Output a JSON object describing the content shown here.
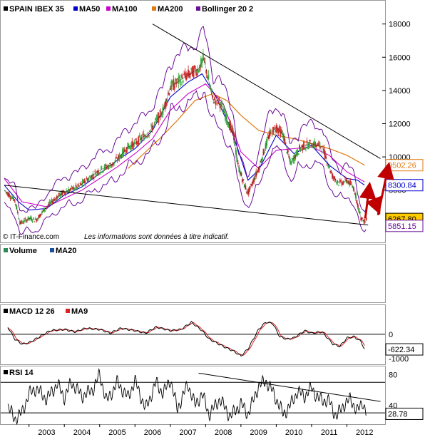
{
  "chart_data": [
    {
      "type": "candlestick",
      "legend": [
        {
          "label": "SPAIN IBEX 35",
          "color": "#000000"
        },
        {
          "label": "MA50",
          "color": "#0000cc"
        },
        {
          "label": "MA100",
          "color": "#cc00cc"
        },
        {
          "label": "MA200",
          "color": "#e07a10"
        },
        {
          "label": "Bollinger 20 2",
          "color": "#6a0d99"
        }
      ],
      "y_ticks": [
        "18000",
        "16000",
        "14000",
        "12000",
        "10000",
        "8000"
      ],
      "ylim": [
        5500,
        18500
      ],
      "x_ticks": [
        "2003",
        "2004",
        "2005",
        "2006",
        "2007",
        "2008",
        "2009",
        "2010",
        "2011",
        "2012"
      ],
      "xlim": [
        2002.3,
        2013.0
      ],
      "price_path": [
        [
          2002.3,
          8000
        ],
        [
          2002.6,
          7400
        ],
        [
          2002.75,
          6000
        ],
        [
          2003.0,
          6300
        ],
        [
          2003.2,
          6200
        ],
        [
          2003.5,
          7000
        ],
        [
          2003.8,
          7600
        ],
        [
          2004.0,
          7900
        ],
        [
          2004.4,
          8200
        ],
        [
          2004.8,
          8900
        ],
        [
          2005.0,
          9200
        ],
        [
          2005.4,
          9600
        ],
        [
          2005.8,
          10600
        ],
        [
          2006.0,
          10800
        ],
        [
          2006.4,
          11500
        ],
        [
          2006.8,
          12800
        ],
        [
          2007.0,
          14200
        ],
        [
          2007.4,
          14800
        ],
        [
          2007.8,
          15300
        ],
        [
          2007.95,
          15900
        ],
        [
          2008.2,
          13500
        ],
        [
          2008.4,
          13300
        ],
        [
          2008.8,
          11300
        ],
        [
          2008.9,
          9600
        ],
        [
          2009.1,
          8300
        ],
        [
          2009.2,
          7800
        ],
        [
          2009.5,
          9300
        ],
        [
          2009.8,
          11300
        ],
        [
          2010.0,
          11800
        ],
        [
          2010.2,
          11300
        ],
        [
          2010.4,
          9600
        ],
        [
          2010.7,
          10600
        ],
        [
          2011.0,
          10800
        ],
        [
          2011.3,
          10600
        ],
        [
          2011.6,
          8800
        ],
        [
          2011.8,
          8400
        ],
        [
          2012.0,
          8600
        ],
        [
          2012.2,
          8100
        ],
        [
          2012.4,
          6300
        ],
        [
          2012.5,
          6100
        ],
        [
          2012.55,
          6267.8
        ]
      ],
      "ma50": [
        [
          2002.3,
          8300
        ],
        [
          2002.7,
          7300
        ],
        [
          2003.0,
          6800
        ],
        [
          2003.5,
          6900
        ],
        [
          2004.0,
          7700
        ],
        [
          2004.5,
          8200
        ],
        [
          2005.0,
          9000
        ],
        [
          2005.5,
          9800
        ],
        [
          2006.0,
          10500
        ],
        [
          2006.5,
          11600
        ],
        [
          2007.0,
          13600
        ],
        [
          2007.5,
          14500
        ],
        [
          2007.9,
          15000
        ],
        [
          2008.3,
          13600
        ],
        [
          2008.8,
          11200
        ],
        [
          2009.2,
          8600
        ],
        [
          2009.5,
          9200
        ],
        [
          2010.0,
          11300
        ],
        [
          2010.5,
          10200
        ],
        [
          2011.0,
          10700
        ],
        [
          2011.5,
          9500
        ],
        [
          2012.0,
          8700
        ],
        [
          2012.3,
          8600
        ],
        [
          2012.5,
          8300.84
        ]
      ],
      "ma100": [
        [
          2002.3,
          8700
        ],
        [
          2002.8,
          7300
        ],
        [
          2003.5,
          7000
        ],
        [
          2004.0,
          7500
        ],
        [
          2004.5,
          8000
        ],
        [
          2005.0,
          8700
        ],
        [
          2005.5,
          9400
        ],
        [
          2006.0,
          10200
        ],
        [
          2006.5,
          11100
        ],
        [
          2007.0,
          12800
        ],
        [
          2007.5,
          13800
        ],
        [
          2008.0,
          14400
        ],
        [
          2008.5,
          13200
        ],
        [
          2009.0,
          10300
        ],
        [
          2009.5,
          9300
        ],
        [
          2010.0,
          10400
        ],
        [
          2010.5,
          10500
        ],
        [
          2011.0,
          10600
        ],
        [
          2011.5,
          10100
        ],
        [
          2012.0,
          9100
        ],
        [
          2012.5,
          8500
        ]
      ],
      "ma200": [
        [
          2005.8,
          9300
        ],
        [
          2006.2,
          10100
        ],
        [
          2006.7,
          11100
        ],
        [
          2007.2,
          12200
        ],
        [
          2007.7,
          13400
        ],
        [
          2008.2,
          13800
        ],
        [
          2008.6,
          13400
        ],
        [
          2009.0,
          12500
        ],
        [
          2009.5,
          11600
        ],
        [
          2010.0,
          11300
        ],
        [
          2010.5,
          11100
        ],
        [
          2011.0,
          10800
        ],
        [
          2011.5,
          10500
        ],
        [
          2012.0,
          10100
        ],
        [
          2012.5,
          9502.26
        ]
      ],
      "trendlines": [
        [
          [
            2002.3,
            8300
          ],
          [
            2012.6,
            5900
          ]
        ],
        [
          [
            2006.5,
            18000
          ],
          [
            2012.95,
            9900
          ]
        ]
      ],
      "value_boxes": [
        {
          "value": "9502.26",
          "color": "#e07a10",
          "fill": "#ffffff"
        },
        {
          "value": "8300.84",
          "color": "#0000cc",
          "fill": "#ffffff"
        },
        {
          "value": "6267.80",
          "color": "#000000",
          "fill": "#ffcc00"
        },
        {
          "value": "5851.15",
          "color": "#6a0d99",
          "fill": "#ffffff"
        }
      ]
    },
    {
      "type": "bar",
      "legend": [
        {
          "label": "Volume",
          "color": "#2e8b57"
        },
        {
          "label": "MA20",
          "color": "#1a4f9c"
        }
      ]
    },
    {
      "type": "line",
      "legend": [
        {
          "label": "MACD 12 26",
          "color": "#000000"
        },
        {
          "label": "MA9",
          "color": "#dd2222"
        }
      ],
      "y_ticks": [
        "0",
        "-1000"
      ],
      "ylim": [
        -1150,
        850
      ],
      "macd": [
        [
          2002.4,
          300
        ],
        [
          2002.6,
          -200
        ],
        [
          2002.8,
          -400
        ],
        [
          2003.0,
          -350
        ],
        [
          2003.3,
          -100
        ],
        [
          2003.6,
          150
        ],
        [
          2004.0,
          200
        ],
        [
          2004.3,
          100
        ],
        [
          2004.6,
          250
        ],
        [
          2005.0,
          200
        ],
        [
          2005.3,
          50
        ],
        [
          2005.6,
          250
        ],
        [
          2006.0,
          150
        ],
        [
          2006.3,
          50
        ],
        [
          2006.6,
          300
        ],
        [
          2007.0,
          150
        ],
        [
          2007.3,
          200
        ],
        [
          2007.6,
          500
        ],
        [
          2007.9,
          150
        ],
        [
          2008.1,
          -200
        ],
        [
          2008.5,
          -500
        ],
        [
          2008.8,
          -700
        ],
        [
          2009.0,
          -900
        ],
        [
          2009.2,
          -600
        ],
        [
          2009.5,
          200
        ],
        [
          2009.7,
          500
        ],
        [
          2009.9,
          450
        ],
        [
          2010.1,
          -100
        ],
        [
          2010.3,
          -200
        ],
        [
          2010.5,
          -150
        ],
        [
          2010.8,
          150
        ],
        [
          2011.0,
          50
        ],
        [
          2011.3,
          100
        ],
        [
          2011.6,
          -400
        ],
        [
          2011.8,
          -500
        ],
        [
          2012.0,
          -150
        ],
        [
          2012.2,
          -100
        ],
        [
          2012.4,
          -300
        ],
        [
          2012.5,
          -622.34
        ]
      ],
      "value_boxes": [
        {
          "value": "-622.34",
          "color": "#000000",
          "fill": "#ffffff"
        }
      ]
    },
    {
      "type": "line",
      "legend": [
        {
          "label": "RSI 14",
          "color": "#000000"
        }
      ],
      "y_ticks": [
        "80",
        "40"
      ],
      "reference_lines": [
        70,
        30
      ],
      "ylim": [
        18,
        88
      ],
      "rsi": [
        [
          2002.4,
          38
        ],
        [
          2002.6,
          22
        ],
        [
          2002.8,
          30
        ],
        [
          2003.0,
          55
        ],
        [
          2003.2,
          62
        ],
        [
          2003.5,
          48
        ],
        [
          2003.8,
          68
        ],
        [
          2004.0,
          50
        ],
        [
          2004.2,
          70
        ],
        [
          2004.5,
          52
        ],
        [
          2004.8,
          60
        ],
        [
          2005.0,
          80
        ],
        [
          2005.2,
          45
        ],
        [
          2005.5,
          70
        ],
        [
          2005.8,
          50
        ],
        [
          2006.0,
          72
        ],
        [
          2006.3,
          35
        ],
        [
          2006.6,
          70
        ],
        [
          2006.8,
          55
        ],
        [
          2007.0,
          74
        ],
        [
          2007.2,
          35
        ],
        [
          2007.5,
          68
        ],
        [
          2007.7,
          40
        ],
        [
          2007.9,
          55
        ],
        [
          2008.1,
          28
        ],
        [
          2008.4,
          48
        ],
        [
          2008.7,
          25
        ],
        [
          2009.0,
          42
        ],
        [
          2009.2,
          28
        ],
        [
          2009.5,
          65
        ],
        [
          2009.7,
          72
        ],
        [
          2009.9,
          58
        ],
        [
          2010.2,
          28
        ],
        [
          2010.4,
          40
        ],
        [
          2010.6,
          58
        ],
        [
          2010.8,
          52
        ],
        [
          2011.0,
          63
        ],
        [
          2011.2,
          48
        ],
        [
          2011.5,
          45
        ],
        [
          2011.7,
          25
        ],
        [
          2011.9,
          40
        ],
        [
          2012.1,
          48
        ],
        [
          2012.3,
          32
        ],
        [
          2012.45,
          45
        ],
        [
          2012.55,
          28.78
        ]
      ],
      "trendlines": [
        [
          [
            2007.8,
            82
          ],
          [
            2012.95,
            45
          ]
        ]
      ],
      "value_boxes": [
        {
          "value": "28.78",
          "color": "#000000",
          "fill": "#ffffff"
        }
      ]
    }
  ],
  "footer": {
    "source": "© IT-Finance.com",
    "disclaimer": "Les informations sont données à titre indicatif."
  }
}
